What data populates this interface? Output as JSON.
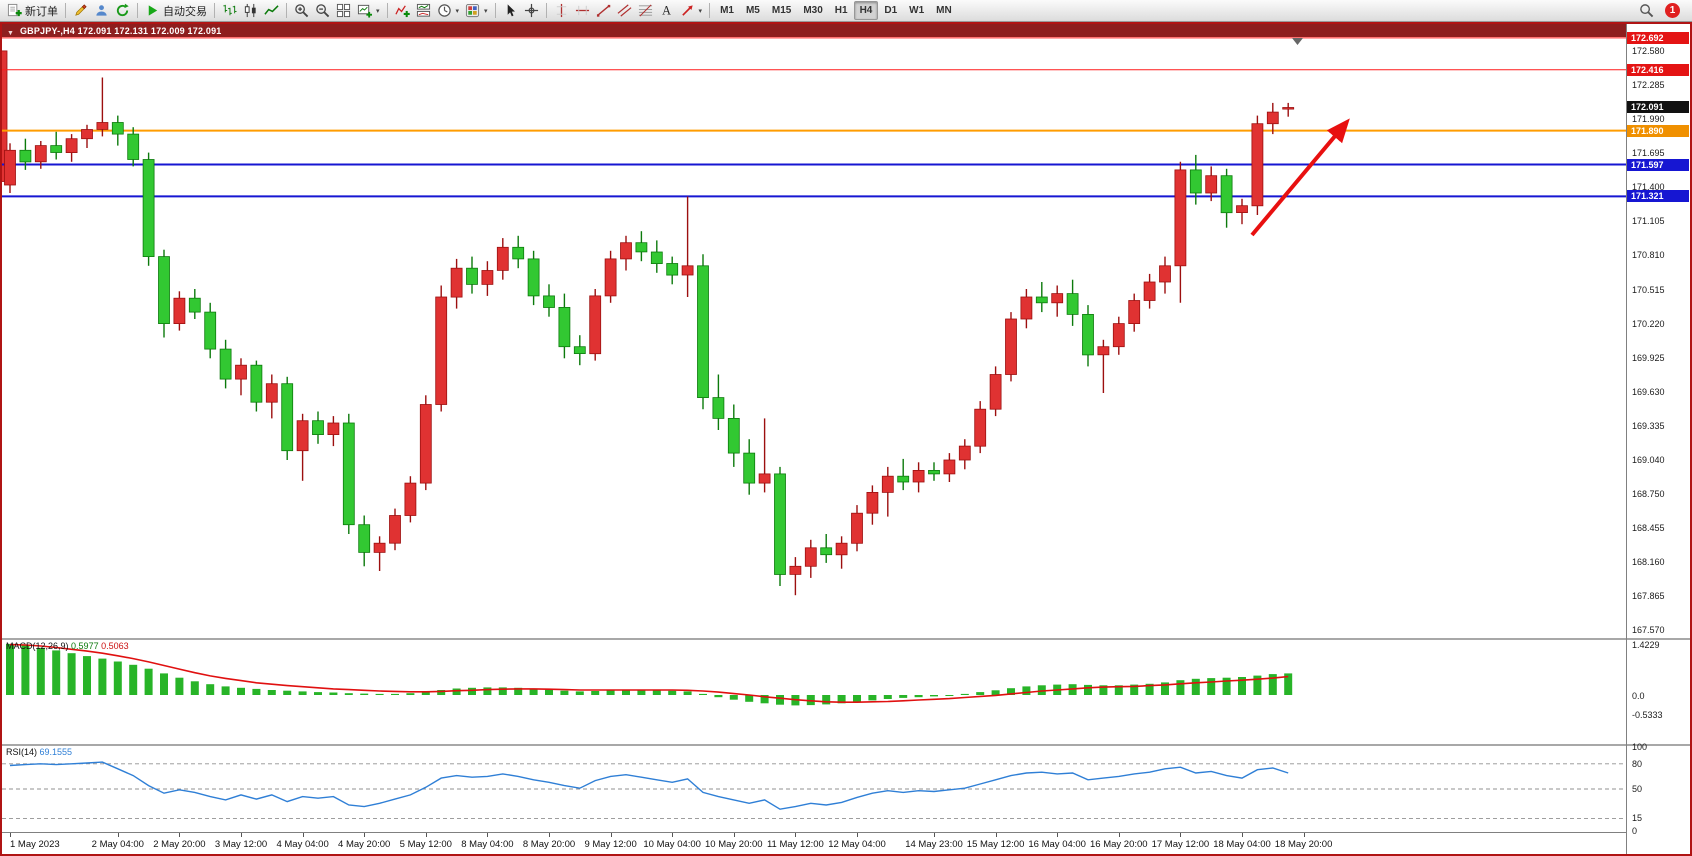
{
  "toolbar": {
    "timeframes": [
      "M1",
      "M5",
      "M15",
      "M30",
      "H1",
      "H4",
      "D1",
      "W1",
      "MN"
    ],
    "active_timeframe": "H4",
    "notification_count": "1",
    "groups": [
      {
        "items": [
          {
            "name": "new-order",
            "label": "新订单"
          }
        ]
      },
      {
        "items": [
          {
            "name": "metaeditor"
          },
          {
            "name": "profile"
          },
          {
            "name": "refresh"
          }
        ]
      },
      {
        "items": [
          {
            "name": "autotrading",
            "label": "自动交易"
          }
        ]
      },
      {
        "items": [
          {
            "name": "bar-chart"
          },
          {
            "name": "candlestick-chart"
          },
          {
            "name": "line-chart"
          }
        ]
      },
      {
        "items": [
          {
            "name": "zoom-in"
          },
          {
            "name": "zoom-out"
          },
          {
            "name": "tile-windows"
          },
          {
            "name": "new-chart",
            "caret": true
          }
        ]
      },
      {
        "items": [
          {
            "name": "indicators"
          },
          {
            "name": "indicator-windows"
          },
          {
            "name": "periods",
            "caret": true
          },
          {
            "name": "templates",
            "caret": true
          }
        ]
      },
      {
        "items": [
          {
            "name": "cursor"
          },
          {
            "name": "crosshair"
          }
        ]
      },
      {
        "items": [
          {
            "name": "vertical-line"
          },
          {
            "name": "horizontal-line"
          },
          {
            "name": "trendline"
          },
          {
            "name": "equidistant-channel"
          },
          {
            "name": "fibonacci"
          },
          {
            "name": "text"
          },
          {
            "name": "arrows",
            "caret": true
          }
        ]
      },
      {
        "timeframes": true
      }
    ]
  },
  "chart": {
    "title": "GBPJPY-,H4 172.091 172.131 172.009 172.091"
  },
  "chart_data": {
    "type": "candlestick",
    "symbol": "GBPJPY-",
    "timeframe": "H4",
    "current": {
      "open": 172.091,
      "high": 172.131,
      "low": 172.009,
      "close": 172.091
    },
    "ylim": [
      167.5,
      172.7
    ],
    "colors": {
      "bull": "#e03232",
      "bull_stroke": "#9c0f0f",
      "bear": "#32c832",
      "bear_stroke": "#0c7a0c"
    },
    "y_ticks": [
      172.58,
      172.285,
      171.99,
      171.695,
      171.4,
      171.105,
      170.81,
      170.515,
      170.22,
      169.925,
      169.63,
      169.335,
      169.04,
      168.75,
      168.455,
      168.16,
      167.865,
      167.57
    ],
    "hlines": [
      {
        "price": 172.692,
        "color": "#ff1c1c",
        "width": 1,
        "tag_bg": "#e41414"
      },
      {
        "price": 172.416,
        "color": "#ff1c1c",
        "width": 1,
        "tag_bg": "#e41414"
      },
      {
        "price": 171.89,
        "color": "#ff9c00",
        "width": 2,
        "tag_bg": "#f09000"
      },
      {
        "price": 171.597,
        "color": "#1616d2",
        "width": 2,
        "tag_bg": "#1616d2"
      },
      {
        "price": 171.321,
        "color": "#1616d2",
        "width": 2,
        "tag_bg": "#1616d2"
      }
    ],
    "current_price": 172.091,
    "edge_candle": [
      171.45,
      172.62,
      171.4,
      172.58
    ],
    "candles": [
      [
        171.42,
        171.78,
        171.35,
        171.72
      ],
      [
        171.72,
        171.82,
        171.55,
        171.62
      ],
      [
        171.62,
        171.8,
        171.56,
        171.76
      ],
      [
        171.76,
        171.88,
        171.64,
        171.7
      ],
      [
        171.7,
        171.86,
        171.62,
        171.82
      ],
      [
        171.82,
        171.94,
        171.74,
        171.9
      ],
      [
        171.9,
        172.35,
        171.84,
        171.96
      ],
      [
        171.96,
        172.02,
        171.76,
        171.86
      ],
      [
        171.86,
        171.92,
        171.58,
        171.64
      ],
      [
        171.64,
        171.7,
        170.72,
        170.8
      ],
      [
        170.8,
        170.86,
        170.1,
        170.22
      ],
      [
        170.22,
        170.5,
        170.16,
        170.44
      ],
      [
        170.44,
        170.52,
        170.26,
        170.32
      ],
      [
        170.32,
        170.4,
        169.92,
        170.0
      ],
      [
        170.0,
        170.08,
        169.66,
        169.74
      ],
      [
        169.74,
        169.92,
        169.6,
        169.86
      ],
      [
        169.86,
        169.9,
        169.46,
        169.54
      ],
      [
        169.54,
        169.78,
        169.4,
        169.7
      ],
      [
        169.7,
        169.76,
        169.04,
        169.12
      ],
      [
        169.12,
        169.44,
        168.86,
        169.38
      ],
      [
        169.38,
        169.46,
        169.18,
        169.26
      ],
      [
        169.26,
        169.42,
        169.16,
        169.36
      ],
      [
        169.36,
        169.44,
        168.4,
        168.48
      ],
      [
        168.48,
        168.56,
        168.12,
        168.24
      ],
      [
        168.24,
        168.38,
        168.08,
        168.32
      ],
      [
        168.32,
        168.62,
        168.26,
        168.56
      ],
      [
        168.56,
        168.9,
        168.5,
        168.84
      ],
      [
        168.84,
        169.6,
        168.78,
        169.52
      ],
      [
        169.52,
        170.55,
        169.46,
        170.45
      ],
      [
        170.45,
        170.78,
        170.35,
        170.7
      ],
      [
        170.7,
        170.8,
        170.48,
        170.56
      ],
      [
        170.56,
        170.76,
        170.46,
        170.68
      ],
      [
        170.68,
        170.96,
        170.6,
        170.88
      ],
      [
        170.88,
        170.98,
        170.7,
        170.78
      ],
      [
        170.78,
        170.85,
        170.38,
        170.46
      ],
      [
        170.46,
        170.56,
        170.28,
        170.36
      ],
      [
        170.36,
        170.48,
        169.92,
        170.02
      ],
      [
        170.02,
        170.12,
        169.86,
        169.96
      ],
      [
        169.96,
        170.52,
        169.9,
        170.46
      ],
      [
        170.46,
        170.85,
        170.4,
        170.78
      ],
      [
        170.78,
        170.98,
        170.68,
        170.92
      ],
      [
        170.92,
        171.02,
        170.76,
        170.84
      ],
      [
        170.84,
        170.94,
        170.66,
        170.74
      ],
      [
        170.74,
        170.8,
        170.56,
        170.64
      ],
      [
        170.64,
        171.32,
        170.45,
        170.72
      ],
      [
        170.72,
        170.82,
        169.48,
        169.58
      ],
      [
        169.58,
        169.78,
        169.3,
        169.4
      ],
      [
        169.4,
        169.52,
        168.98,
        169.1
      ],
      [
        169.1,
        169.22,
        168.74,
        168.84
      ],
      [
        168.84,
        169.4,
        168.76,
        168.92
      ],
      [
        168.92,
        168.98,
        167.95,
        168.05
      ],
      [
        168.05,
        168.2,
        167.87,
        168.12
      ],
      [
        168.12,
        168.35,
        168.02,
        168.28
      ],
      [
        168.28,
        168.4,
        168.15,
        168.22
      ],
      [
        168.22,
        168.38,
        168.1,
        168.32
      ],
      [
        168.32,
        168.65,
        168.25,
        168.58
      ],
      [
        168.58,
        168.82,
        168.48,
        168.76
      ],
      [
        168.76,
        168.98,
        168.55,
        168.9
      ],
      [
        168.9,
        169.05,
        168.78,
        168.85
      ],
      [
        168.85,
        169.02,
        168.76,
        168.95
      ],
      [
        168.95,
        169.02,
        168.86,
        168.92
      ],
      [
        168.92,
        169.1,
        168.85,
        169.04
      ],
      [
        169.04,
        169.22,
        168.96,
        169.16
      ],
      [
        169.16,
        169.55,
        169.1,
        169.48
      ],
      [
        169.48,
        169.85,
        169.42,
        169.78
      ],
      [
        169.78,
        170.32,
        169.72,
        170.26
      ],
      [
        170.26,
        170.52,
        170.18,
        170.45
      ],
      [
        170.45,
        170.58,
        170.32,
        170.4
      ],
      [
        170.4,
        170.55,
        170.28,
        170.48
      ],
      [
        170.48,
        170.6,
        170.2,
        170.3
      ],
      [
        170.3,
        170.38,
        169.85,
        169.95
      ],
      [
        169.95,
        170.08,
        169.62,
        170.02
      ],
      [
        170.02,
        170.28,
        169.95,
        170.22
      ],
      [
        170.22,
        170.48,
        170.15,
        170.42
      ],
      [
        170.42,
        170.65,
        170.35,
        170.58
      ],
      [
        170.58,
        170.8,
        170.48,
        170.72
      ],
      [
        170.72,
        171.62,
        170.4,
        171.55
      ],
      [
        171.55,
        171.68,
        171.25,
        171.35
      ],
      [
        171.35,
        171.58,
        171.28,
        171.5
      ],
      [
        171.5,
        171.56,
        171.05,
        171.18
      ],
      [
        171.18,
        171.3,
        171.08,
        171.24
      ],
      [
        171.24,
        172.02,
        171.16,
        171.95
      ],
      [
        171.95,
        172.13,
        171.86,
        172.05
      ],
      [
        172.09,
        172.13,
        172.01,
        172.09
      ]
    ],
    "x_labels": [
      {
        "idx": 0,
        "label": "1 May 2023"
      },
      {
        "idx": 7,
        "label": "2 May 04:00"
      },
      {
        "idx": 11,
        "label": "2 May 20:00"
      },
      {
        "idx": 15,
        "label": "3 May 12:00"
      },
      {
        "idx": 19,
        "label": "4 May 04:00"
      },
      {
        "idx": 23,
        "label": "4 May 20:00"
      },
      {
        "idx": 27,
        "label": "5 May 12:00"
      },
      {
        "idx": 31,
        "label": "8 May 04:00"
      },
      {
        "idx": 35,
        "label": "8 May 20:00"
      },
      {
        "idx": 39,
        "label": "9 May 12:00"
      },
      {
        "idx": 43,
        "label": "10 May 04:00"
      },
      {
        "idx": 47,
        "label": "10 May 20:00"
      },
      {
        "idx": 51,
        "label": "11 May 12:00"
      },
      {
        "idx": 55,
        "label": "12 May 04:00"
      },
      {
        "idx": 60,
        "label": "14 May 23:00"
      },
      {
        "idx": 64,
        "label": "15 May 12:00"
      },
      {
        "idx": 68,
        "label": "16 May 04:00"
      },
      {
        "idx": 72,
        "label": "16 May 20:00"
      },
      {
        "idx": 76,
        "label": "17 May 12:00"
      },
      {
        "idx": 80,
        "label": "18 May 04:00"
      },
      {
        "idx": 84,
        "label": "18 May 20:00"
      }
    ],
    "trend_arrow": {
      "from": [
        1250,
        198
      ],
      "to": [
        1344,
        86
      ],
      "color": "#e81010"
    },
    "macd": {
      "label": "MACD(12,26,9)",
      "value_main": "0.5977",
      "value_signal": "0.5063",
      "hist_color": "#28b428",
      "signal_color": "#e01010",
      "ticks": [
        {
          "v": 1.4229,
          "text": "1.4229"
        },
        {
          "v": 0,
          "text": "0.0"
        },
        {
          "v": -0.5333,
          "text": "-0.5333"
        }
      ],
      "histogram": [
        1.42,
        1.38,
        1.31,
        1.24,
        1.16,
        1.08,
        1.01,
        0.93,
        0.84,
        0.73,
        0.6,
        0.48,
        0.38,
        0.3,
        0.24,
        0.2,
        0.17,
        0.14,
        0.12,
        0.1,
        0.08,
        0.07,
        0.05,
        0.04,
        0.03,
        0.03,
        0.05,
        0.09,
        0.14,
        0.18,
        0.2,
        0.21,
        0.21,
        0.2,
        0.18,
        0.15,
        0.12,
        0.1,
        0.11,
        0.13,
        0.15,
        0.15,
        0.14,
        0.12,
        0.1,
        0.03,
        -0.06,
        -0.13,
        -0.19,
        -0.23,
        -0.27,
        -0.29,
        -0.28,
        -0.26,
        -0.23,
        -0.19,
        -0.15,
        -0.11,
        -0.08,
        -0.06,
        -0.04,
        -0.01,
        0.03,
        0.08,
        0.13,
        0.19,
        0.24,
        0.27,
        0.29,
        0.3,
        0.28,
        0.27,
        0.27,
        0.29,
        0.31,
        0.35,
        0.41,
        0.45,
        0.47,
        0.48,
        0.5,
        0.54,
        0.58,
        0.6
      ],
      "signal": [
        1.4,
        1.39,
        1.36,
        1.32,
        1.27,
        1.22,
        1.16,
        1.09,
        1.01,
        0.92,
        0.82,
        0.72,
        0.62,
        0.53,
        0.46,
        0.4,
        0.34,
        0.3,
        0.26,
        0.23,
        0.2,
        0.17,
        0.15,
        0.13,
        0.11,
        0.1,
        0.09,
        0.09,
        0.1,
        0.12,
        0.13,
        0.15,
        0.16,
        0.17,
        0.17,
        0.16,
        0.15,
        0.14,
        0.14,
        0.14,
        0.14,
        0.14,
        0.14,
        0.14,
        0.13,
        0.11,
        0.08,
        0.04,
        0.0,
        -0.05,
        -0.09,
        -0.13,
        -0.16,
        -0.19,
        -0.2,
        -0.2,
        -0.19,
        -0.18,
        -0.16,
        -0.14,
        -0.12,
        -0.1,
        -0.07,
        -0.04,
        -0.01,
        0.03,
        0.07,
        0.11,
        0.14,
        0.17,
        0.2,
        0.22,
        0.23,
        0.24,
        0.26,
        0.28,
        0.31,
        0.34,
        0.36,
        0.39,
        0.41,
        0.44,
        0.47,
        0.51
      ]
    },
    "rsi": {
      "label": "RSI(14)",
      "value": "69.1555",
      "line_color": "#2f7fd6",
      "levels": [
        80,
        50,
        15
      ],
      "ticks": [
        100,
        80,
        50,
        15,
        0
      ],
      "values": [
        78,
        79,
        80,
        79,
        80,
        81,
        82,
        74,
        66,
        54,
        45,
        49,
        46,
        41,
        37,
        43,
        38,
        43,
        35,
        41,
        39,
        41,
        31,
        29,
        33,
        38,
        43,
        52,
        63,
        66,
        64,
        65,
        68,
        65,
        61,
        58,
        54,
        51,
        60,
        65,
        67,
        64,
        61,
        58,
        62,
        46,
        41,
        37,
        33,
        37,
        26,
        29,
        33,
        31,
        34,
        40,
        45,
        48,
        46,
        48,
        47,
        49,
        51,
        56,
        61,
        66,
        69,
        70,
        68,
        69,
        61,
        63,
        65,
        68,
        70,
        74,
        76,
        69,
        71,
        66,
        63,
        73,
        75,
        69
      ]
    }
  }
}
